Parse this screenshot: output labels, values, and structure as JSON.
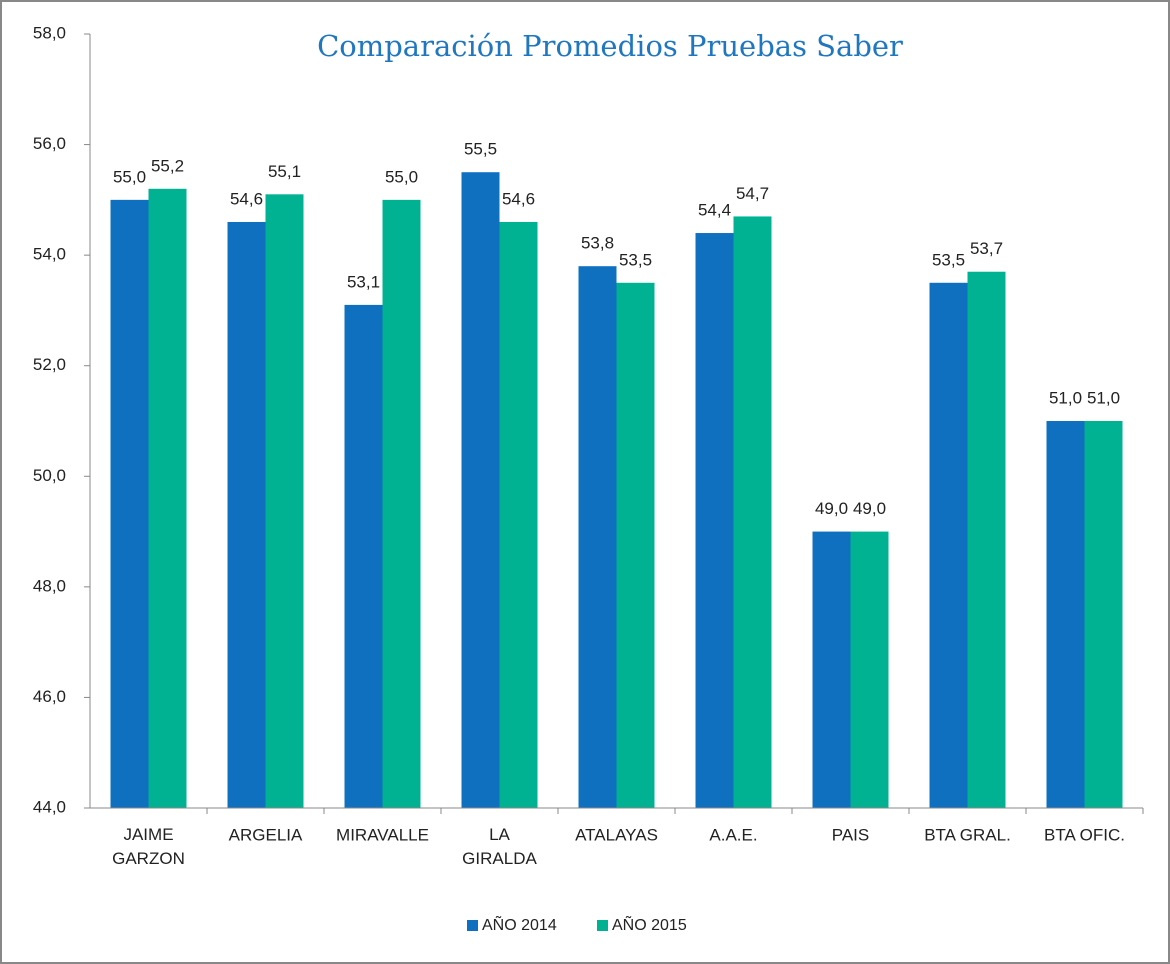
{
  "chart_data": {
    "type": "bar",
    "title": "Comparación Promedios Pruebas Saber",
    "categories": [
      "JAIME\nGARZON",
      "ARGELIA",
      "MIRAVALLE",
      "LA\nGIRALDA",
      "ATALAYAS",
      "A.A.E.",
      "PAIS",
      "BTA GRAL.",
      "BTA OFIC."
    ],
    "series": [
      {
        "name": "AÑO 2014",
        "color": "#0f70c0",
        "values": [
          55.0,
          54.6,
          53.1,
          55.5,
          53.8,
          54.4,
          49.0,
          53.5,
          51.0
        ],
        "value_labels": [
          "55,0",
          "54,6",
          "53,1",
          "55,5",
          "53,8",
          "54,4",
          "49,0",
          "53,5",
          "51,0"
        ]
      },
      {
        "name": "AÑO 2015",
        "color": "#00b192",
        "values": [
          55.2,
          55.1,
          55.0,
          54.6,
          53.5,
          54.7,
          49.0,
          53.7,
          51.0
        ],
        "value_labels": [
          "55,2",
          "55,1",
          "55,0",
          "54,6",
          "53,5",
          "54,7",
          "49,0",
          "53,7",
          "51,0"
        ]
      }
    ],
    "ylim": [
      44,
      58
    ],
    "yticks": [
      {
        "value": 44,
        "label": "44,0"
      },
      {
        "value": 46,
        "label": "46,0"
      },
      {
        "value": 48,
        "label": "48,0"
      },
      {
        "value": 50,
        "label": "50,0"
      },
      {
        "value": 52,
        "label": "52,0"
      },
      {
        "value": 54,
        "label": "54,0"
      },
      {
        "value": 56,
        "label": "56,0"
      },
      {
        "value": 58,
        "label": "58,0"
      }
    ],
    "legend": "bottom"
  }
}
